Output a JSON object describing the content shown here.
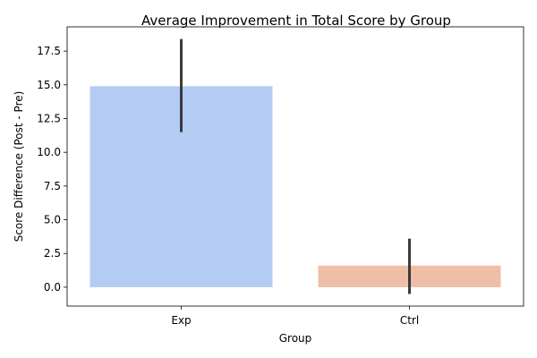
{
  "chart_data": {
    "type": "bar",
    "title": "Average Improvement in Total Score by Group",
    "xlabel": "Group",
    "ylabel": "Score Difference (Post - Pre)",
    "categories": [
      "Exp",
      "Ctrl"
    ],
    "values": [
      14.9,
      1.6
    ],
    "error_low": [
      11.5,
      -0.5
    ],
    "error_high": [
      18.4,
      3.6
    ],
    "ylim": [
      -1.4,
      19.3
    ],
    "yticks": [
      0.0,
      2.5,
      5.0,
      7.5,
      10.0,
      12.5,
      15.0,
      17.5
    ],
    "ytick_labels": [
      "0.0",
      "2.5",
      "5.0",
      "7.5",
      "10.0",
      "12.5",
      "15.0",
      "17.5"
    ],
    "colors": [
      "#b4cbf4",
      "#eebfa6"
    ],
    "error_color": "#3a3a3a",
    "grid": false,
    "legend": "none"
  }
}
